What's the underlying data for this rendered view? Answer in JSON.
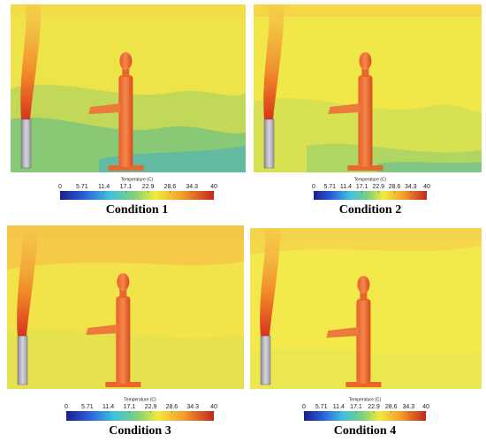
{
  "panels": [
    {
      "label": "Condition 1",
      "colorbar": {
        "title": "Temperature (C)",
        "ticks": [
          0,
          5.71,
          11.4,
          17.1,
          22.9,
          28.6,
          34.3,
          40
        ]
      }
    },
    {
      "label": "Condition 2",
      "colorbar": {
        "title": "Temperature (C)",
        "ticks": [
          0,
          5.71,
          11.4,
          17.1,
          22.9,
          28.6,
          34.3,
          40
        ]
      }
    },
    {
      "label": "Condition 3",
      "colorbar": {
        "title": "Temperature (C)",
        "ticks": [
          0,
          5.71,
          11.4,
          17.1,
          22.9,
          28.6,
          34.3,
          40
        ]
      }
    },
    {
      "label": "Condition 4",
      "colorbar": {
        "title": "Temperature (C)",
        "ticks": [
          0,
          5.71,
          11.4,
          17.1,
          22.9,
          28.6,
          34.3,
          40
        ]
      }
    }
  ]
}
